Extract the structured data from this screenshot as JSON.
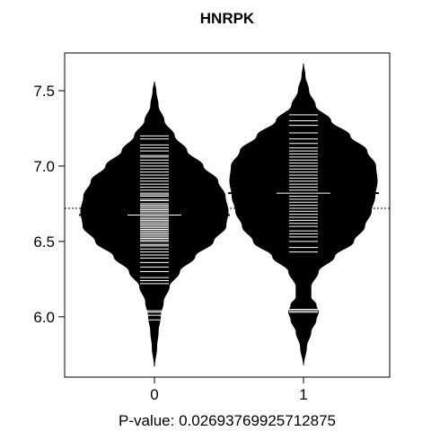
{
  "chart_data": {
    "type": "beanplot",
    "title": "HNRPK",
    "xlabel": "P-value: 0.0269376992571287​5",
    "categories": [
      "0",
      "1"
    ],
    "ylim": [
      5.6,
      7.75
    ],
    "yticks": [
      6.0,
      6.5,
      7.0,
      7.5
    ],
    "ytick_labels": [
      "6.0",
      "6.5",
      "7.0",
      "7.5"
    ],
    "overall_mean": 6.72,
    "groups": [
      {
        "name": "0",
        "mean": 6.675,
        "density": [
          [
            5.67,
            0.0
          ],
          [
            5.8,
            0.03
          ],
          [
            5.9,
            0.05
          ],
          [
            6.0,
            0.08
          ],
          [
            6.1,
            0.12
          ],
          [
            6.2,
            0.2
          ],
          [
            6.3,
            0.34
          ],
          [
            6.4,
            0.55
          ],
          [
            6.5,
            0.8
          ],
          [
            6.6,
            0.97
          ],
          [
            6.7,
            1.0
          ],
          [
            6.8,
            0.96
          ],
          [
            6.9,
            0.86
          ],
          [
            7.0,
            0.66
          ],
          [
            7.1,
            0.44
          ],
          [
            7.2,
            0.27
          ],
          [
            7.3,
            0.13
          ],
          [
            7.4,
            0.05
          ],
          [
            7.5,
            0.02
          ],
          [
            7.56,
            0.0
          ]
        ],
        "observations": [
          5.98,
          6.01,
          6.03,
          6.04,
          6.22,
          6.24,
          6.26,
          6.3,
          6.33,
          6.36,
          6.39,
          6.41,
          6.43,
          6.45,
          6.47,
          6.48,
          6.5,
          6.51,
          6.52,
          6.53,
          6.54,
          6.55,
          6.56,
          6.57,
          6.58,
          6.59,
          6.6,
          6.61,
          6.62,
          6.63,
          6.64,
          6.65,
          6.66,
          6.67,
          6.68,
          6.69,
          6.7,
          6.71,
          6.72,
          6.73,
          6.74,
          6.75,
          6.77,
          6.78,
          6.8,
          6.81,
          6.82,
          6.84,
          6.86,
          6.88,
          6.9,
          6.92,
          6.94,
          6.96,
          6.98,
          7.0,
          7.02,
          7.04,
          7.06,
          7.07,
          7.1,
          7.12,
          7.14,
          7.18,
          7.2
        ]
      },
      {
        "name": "1",
        "mean": 6.82,
        "density": [
          [
            5.68,
            0.0
          ],
          [
            5.8,
            0.04
          ],
          [
            5.9,
            0.1
          ],
          [
            5.98,
            0.17
          ],
          [
            6.03,
            0.2
          ],
          [
            6.08,
            0.17
          ],
          [
            6.13,
            0.1
          ],
          [
            6.2,
            0.1
          ],
          [
            6.3,
            0.2
          ],
          [
            6.4,
            0.42
          ],
          [
            6.5,
            0.68
          ],
          [
            6.6,
            0.83
          ],
          [
            6.7,
            0.92
          ],
          [
            6.8,
            0.97
          ],
          [
            6.9,
            1.0
          ],
          [
            7.0,
            0.98
          ],
          [
            7.1,
            0.86
          ],
          [
            7.2,
            0.63
          ],
          [
            7.3,
            0.37
          ],
          [
            7.4,
            0.16
          ],
          [
            7.5,
            0.07
          ],
          [
            7.6,
            0.02
          ],
          [
            7.68,
            0.0
          ]
        ],
        "observations": [
          6.03,
          6.04,
          6.05,
          6.43,
          6.46,
          6.5,
          6.53,
          6.55,
          6.57,
          6.6,
          6.62,
          6.64,
          6.66,
          6.68,
          6.7,
          6.72,
          6.74,
          6.76,
          6.78,
          6.8,
          6.82,
          6.84,
          6.86,
          6.88,
          6.9,
          6.92,
          6.94,
          6.96,
          6.98,
          7.0,
          7.02,
          7.04,
          7.06,
          7.08,
          7.1,
          7.12,
          7.15,
          7.18,
          7.22,
          7.27,
          7.3,
          7.34
        ]
      }
    ],
    "grid": false,
    "colors": {
      "bean": "#000000",
      "lines": "#ffffff",
      "axis": "#000000",
      "background": "#ffffff"
    }
  }
}
